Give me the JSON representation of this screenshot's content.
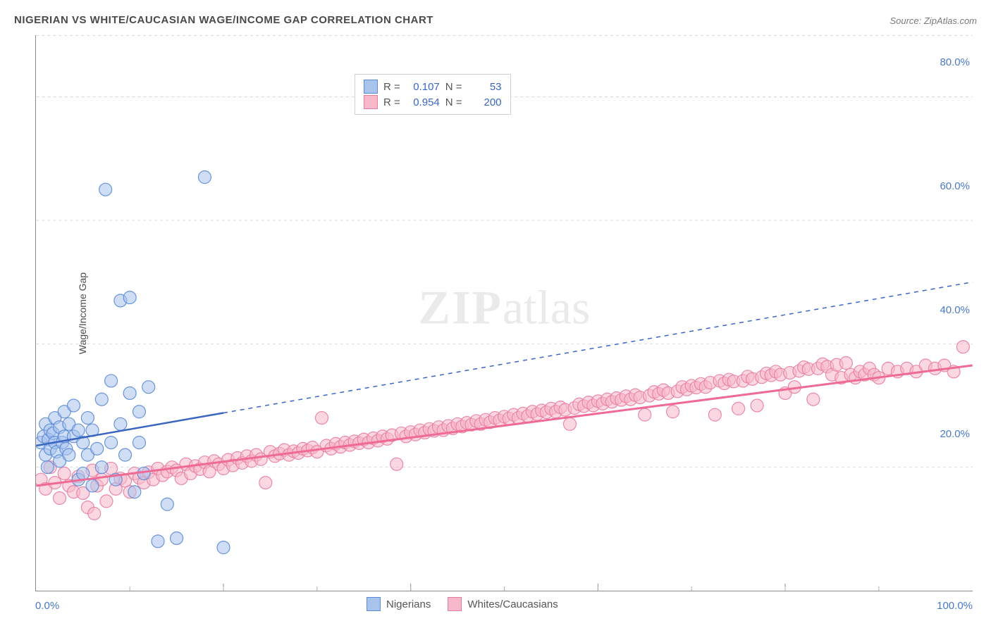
{
  "title": "NIGERIAN VS WHITE/CAUCASIAN WAGE/INCOME GAP CORRELATION CHART",
  "source_label": "Source: ZipAtlas.com",
  "ylabel": "Wage/Income Gap",
  "watermark": {
    "bold": "ZIP",
    "light": "atlas"
  },
  "chart": {
    "type": "scatter",
    "xlim": [
      0,
      100
    ],
    "ylim": [
      0,
      90
    ],
    "x_ticks": [
      0,
      20,
      40,
      60,
      80,
      100
    ],
    "y_gridlines": [
      20,
      40,
      60,
      80
    ],
    "x_tick_labels": {
      "min": "0.0%",
      "max": "100.0%"
    },
    "y_tick_labels": {
      "20": "20.0%",
      "40": "40.0%",
      "60": "60.0%",
      "80": "80.0%"
    },
    "background_color": "#ffffff",
    "grid_color": "#d8d8d8",
    "grid_dash": "4,4",
    "axis_label_color": "#4a78c8",
    "axis_label_fontsize": 15,
    "title_color": "#4a4a4a",
    "marker_radius": 9,
    "marker_opacity": 0.55
  },
  "legend_top": {
    "rows": [
      {
        "swatch_fill": "#a8c3ec",
        "swatch_border": "#5b8ad6",
        "r_label": "R =",
        "r": "0.107",
        "n_label": "N =",
        "n": "53"
      },
      {
        "swatch_fill": "#f7b8c9",
        "swatch_border": "#e87ca0",
        "r_label": "R =",
        "r": "0.954",
        "n_label": "N =",
        "n": "200"
      }
    ]
  },
  "legend_bottom": {
    "items": [
      {
        "swatch_fill": "#a8c3ec",
        "swatch_border": "#5b8ad6",
        "label": "Nigerians"
      },
      {
        "swatch_fill": "#f7b8c9",
        "swatch_border": "#e87ca0",
        "label": "Whites/Caucasians"
      }
    ]
  },
  "series": {
    "blue": {
      "color_fill": "#a8c3ec",
      "color_stroke": "#5b8ad6",
      "trend_color": "#3a66c0",
      "trend_width": 2.5,
      "trend_solid_xmax": 20,
      "trend": {
        "x1": 0,
        "y1": 23.5,
        "x2": 100,
        "y2": 50
      },
      "points": [
        [
          0.5,
          24
        ],
        [
          0.8,
          25
        ],
        [
          1,
          22
        ],
        [
          1,
          27
        ],
        [
          1.2,
          20
        ],
        [
          1.3,
          24.5
        ],
        [
          1.5,
          26
        ],
        [
          1.5,
          23
        ],
        [
          1.8,
          25.5
        ],
        [
          2,
          24
        ],
        [
          2,
          28
        ],
        [
          2.2,
          22.5
        ],
        [
          2.5,
          26.5
        ],
        [
          2.5,
          21
        ],
        [
          2.8,
          24
        ],
        [
          3,
          25
        ],
        [
          3,
          29
        ],
        [
          3.2,
          23
        ],
        [
          3.5,
          27
        ],
        [
          3.5,
          22
        ],
        [
          4,
          30
        ],
        [
          4,
          25
        ],
        [
          4.5,
          18
        ],
        [
          4.5,
          26
        ],
        [
          5,
          24
        ],
        [
          5,
          19
        ],
        [
          5.5,
          28
        ],
        [
          5.5,
          22
        ],
        [
          6,
          17
        ],
        [
          6,
          26
        ],
        [
          6.5,
          23
        ],
        [
          7,
          31
        ],
        [
          7,
          20
        ],
        [
          7.4,
          65
        ],
        [
          8,
          24
        ],
        [
          8,
          34
        ],
        [
          8.5,
          18
        ],
        [
          9,
          27
        ],
        [
          9,
          47
        ],
        [
          9.5,
          22
        ],
        [
          10,
          47.5
        ],
        [
          10,
          32
        ],
        [
          10.5,
          16
        ],
        [
          11,
          24
        ],
        [
          11,
          29
        ],
        [
          11.5,
          19
        ],
        [
          12,
          33
        ],
        [
          13,
          8
        ],
        [
          14,
          14
        ],
        [
          15,
          8.5
        ],
        [
          18,
          67
        ],
        [
          20,
          7
        ]
      ]
    },
    "pink": {
      "color_fill": "#f7b8c9",
      "color_stroke": "#e87ca0",
      "trend_color": "#ef6a94",
      "trend_width": 3,
      "trend": {
        "x1": 0,
        "y1": 17,
        "x2": 100,
        "y2": 36.5
      },
      "points": [
        [
          0.5,
          18
        ],
        [
          1,
          16.5
        ],
        [
          1.5,
          20
        ],
        [
          2,
          17.5
        ],
        [
          2.5,
          15
        ],
        [
          3,
          19
        ],
        [
          3.5,
          17
        ],
        [
          4,
          16
        ],
        [
          4.5,
          18.5
        ],
        [
          5,
          15.8
        ],
        [
          5.5,
          13.5
        ],
        [
          6,
          19.5
        ],
        [
          6.2,
          12.5
        ],
        [
          6.5,
          17
        ],
        [
          7,
          18
        ],
        [
          7.5,
          14.5
        ],
        [
          8,
          19.8
        ],
        [
          8.5,
          16.5
        ],
        [
          9,
          18.2
        ],
        [
          9.5,
          17.8
        ],
        [
          10,
          16
        ],
        [
          10.5,
          19
        ],
        [
          11,
          18.3
        ],
        [
          11.5,
          17.5
        ],
        [
          12,
          19.2
        ],
        [
          12.5,
          18
        ],
        [
          13,
          19.8
        ],
        [
          13.5,
          18.7
        ],
        [
          14,
          19.3
        ],
        [
          14.5,
          20
        ],
        [
          15,
          19.5
        ],
        [
          15.5,
          18.2
        ],
        [
          16,
          20.5
        ],
        [
          16.5,
          19
        ],
        [
          17,
          20.2
        ],
        [
          17.5,
          19.7
        ],
        [
          18,
          20.8
        ],
        [
          18.5,
          19.3
        ],
        [
          19,
          21
        ],
        [
          19.5,
          20.5
        ],
        [
          20,
          19.8
        ],
        [
          20.5,
          21.2
        ],
        [
          21,
          20.3
        ],
        [
          21.5,
          21.5
        ],
        [
          22,
          20.7
        ],
        [
          22.5,
          21.8
        ],
        [
          23,
          21
        ],
        [
          23.5,
          22
        ],
        [
          24,
          21.3
        ],
        [
          24.5,
          17.5
        ],
        [
          25,
          22.5
        ],
        [
          25.5,
          21.8
        ],
        [
          26,
          22.2
        ],
        [
          26.5,
          22.8
        ],
        [
          27,
          22
        ],
        [
          27.5,
          22.6
        ],
        [
          28,
          22.3
        ],
        [
          28.5,
          23
        ],
        [
          29,
          22.7
        ],
        [
          29.5,
          23.2
        ],
        [
          30,
          22.5
        ],
        [
          30.5,
          28
        ],
        [
          31,
          23.5
        ],
        [
          31.5,
          23
        ],
        [
          32,
          23.8
        ],
        [
          32.5,
          23.3
        ],
        [
          33,
          24
        ],
        [
          33.5,
          23.6
        ],
        [
          34,
          24.2
        ],
        [
          34.5,
          23.9
        ],
        [
          35,
          24.5
        ],
        [
          35.5,
          24
        ],
        [
          36,
          24.7
        ],
        [
          36.5,
          24.3
        ],
        [
          37,
          25
        ],
        [
          37.5,
          24.6
        ],
        [
          38,
          25.2
        ],
        [
          38.5,
          20.5
        ],
        [
          39,
          25.5
        ],
        [
          39.5,
          25
        ],
        [
          40,
          25.7
        ],
        [
          40.5,
          25.3
        ],
        [
          41,
          26
        ],
        [
          41.5,
          25.6
        ],
        [
          42,
          26.2
        ],
        [
          42.5,
          25.9
        ],
        [
          43,
          26.5
        ],
        [
          43.5,
          26
        ],
        [
          44,
          26.7
        ],
        [
          44.5,
          26.3
        ],
        [
          45,
          27
        ],
        [
          45.5,
          26.6
        ],
        [
          46,
          27.2
        ],
        [
          46.5,
          26.9
        ],
        [
          47,
          27.5
        ],
        [
          47.5,
          27
        ],
        [
          48,
          27.7
        ],
        [
          48.5,
          27.3
        ],
        [
          49,
          28
        ],
        [
          49.5,
          27.6
        ],
        [
          50,
          28.2
        ],
        [
          50.5,
          27.9
        ],
        [
          51,
          28.5
        ],
        [
          51.5,
          28
        ],
        [
          52,
          28.7
        ],
        [
          52.5,
          28.3
        ],
        [
          53,
          29
        ],
        [
          53.5,
          28.6
        ],
        [
          54,
          29.2
        ],
        [
          54.5,
          28.9
        ],
        [
          55,
          29.5
        ],
        [
          55.5,
          29
        ],
        [
          56,
          29.7
        ],
        [
          56.5,
          29.3
        ],
        [
          57,
          27
        ],
        [
          57.5,
          29.6
        ],
        [
          58,
          30.2
        ],
        [
          58.5,
          29.9
        ],
        [
          59,
          30.5
        ],
        [
          59.5,
          30
        ],
        [
          60,
          30.7
        ],
        [
          60.5,
          30.3
        ],
        [
          61,
          31
        ],
        [
          61.5,
          30.6
        ],
        [
          62,
          31.2
        ],
        [
          62.5,
          30.9
        ],
        [
          63,
          31.5
        ],
        [
          63.5,
          31
        ],
        [
          64,
          31.7
        ],
        [
          64.5,
          31.3
        ],
        [
          65,
          28.5
        ],
        [
          65.5,
          31.6
        ],
        [
          66,
          32.2
        ],
        [
          66.5,
          31.9
        ],
        [
          67,
          32.5
        ],
        [
          67.5,
          32
        ],
        [
          68,
          29
        ],
        [
          68.5,
          32.3
        ],
        [
          69,
          33
        ],
        [
          69.5,
          32.6
        ],
        [
          70,
          33.2
        ],
        [
          70.5,
          32.9
        ],
        [
          71,
          33.5
        ],
        [
          71.5,
          33
        ],
        [
          72,
          33.7
        ],
        [
          72.5,
          28.5
        ],
        [
          73,
          34
        ],
        [
          73.5,
          33.6
        ],
        [
          74,
          34.2
        ],
        [
          74.5,
          33.9
        ],
        [
          75,
          29.5
        ],
        [
          75.5,
          34
        ],
        [
          76,
          34.7
        ],
        [
          76.5,
          34.3
        ],
        [
          77,
          30
        ],
        [
          77.5,
          34.6
        ],
        [
          78,
          35.2
        ],
        [
          78.5,
          34.9
        ],
        [
          79,
          35.5
        ],
        [
          79.5,
          35
        ],
        [
          80,
          32
        ],
        [
          80.5,
          35.3
        ],
        [
          81,
          33
        ],
        [
          81.5,
          35.6
        ],
        [
          82,
          36.2
        ],
        [
          82.5,
          35.9
        ],
        [
          83,
          31
        ],
        [
          83.5,
          36
        ],
        [
          84,
          36.7
        ],
        [
          84.5,
          36.3
        ],
        [
          85,
          35
        ],
        [
          85.5,
          36.6
        ],
        [
          86,
          34.5
        ],
        [
          86.5,
          36.9
        ],
        [
          87,
          35
        ],
        [
          87.5,
          34.5
        ],
        [
          88,
          35.5
        ],
        [
          88.5,
          35
        ],
        [
          89,
          36
        ],
        [
          89.5,
          35
        ],
        [
          90,
          34.5
        ],
        [
          91,
          36
        ],
        [
          92,
          35.5
        ],
        [
          93,
          36
        ],
        [
          94,
          35.5
        ],
        [
          95,
          36.5
        ],
        [
          96,
          36
        ],
        [
          97,
          36.5
        ],
        [
          98,
          35.5
        ],
        [
          99,
          39.5
        ]
      ]
    }
  }
}
